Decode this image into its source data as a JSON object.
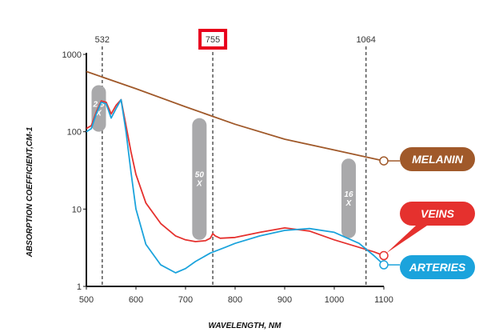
{
  "chart_data": {
    "type": "line",
    "title": "",
    "xlabel": "WAVELENGTH, NM",
    "ylabel": "ABSORPTION COEFFICIENT,CM-1",
    "xlim": [
      500,
      1100
    ],
    "ylim": [
      1,
      1000
    ],
    "yscale": "log",
    "xticks": [
      500,
      600,
      700,
      800,
      900,
      1000,
      1100
    ],
    "yticks": [
      1,
      10,
      100,
      1000
    ],
    "grid": false,
    "reference_lines": [
      {
        "x": 532,
        "label": "532",
        "highlighted": false
      },
      {
        "x": 755,
        "label": "755",
        "highlighted": true
      },
      {
        "x": 1064,
        "label": "1064",
        "highlighted": false
      }
    ],
    "series": [
      {
        "name": "MELANIN",
        "color": "#a0592a",
        "x": [
          500,
          600,
          700,
          800,
          900,
          1000,
          1100
        ],
        "y": [
          600,
          360,
          210,
          125,
          80,
          58,
          42
        ]
      },
      {
        "name": "VEINS",
        "color": "#e5312e",
        "x": [
          500,
          510,
          520,
          530,
          540,
          550,
          560,
          570,
          580,
          590,
          600,
          620,
          650,
          680,
          700,
          720,
          740,
          750,
          755,
          760,
          770,
          800,
          850,
          900,
          950,
          1000,
          1050,
          1080,
          1100
        ],
        "y": [
          110,
          120,
          180,
          250,
          240,
          170,
          220,
          260,
          120,
          55,
          28,
          12,
          6.5,
          4.5,
          4,
          3.8,
          3.9,
          4.2,
          4.8,
          4.5,
          4.2,
          4.3,
          5,
          5.7,
          5.2,
          4.0,
          3.2,
          2.8,
          2.5
        ]
      },
      {
        "name": "ARTERIES",
        "color": "#1ba3dc",
        "x": [
          500,
          510,
          520,
          530,
          540,
          550,
          560,
          570,
          580,
          590,
          600,
          620,
          650,
          680,
          700,
          720,
          750,
          780,
          800,
          850,
          900,
          950,
          1000,
          1050,
          1080,
          1100
        ],
        "y": [
          100,
          110,
          170,
          240,
          230,
          150,
          200,
          260,
          100,
          30,
          10,
          3.5,
          1.9,
          1.5,
          1.7,
          2.1,
          2.7,
          3.2,
          3.6,
          4.5,
          5.3,
          5.6,
          5.0,
          3.6,
          2.5,
          1.9
        ]
      }
    ],
    "annotations": [
      {
        "label_line1": "2.5",
        "label_line2": "X",
        "x": 525,
        "y_range": [
          100,
          400
        ]
      },
      {
        "label_line1": "50",
        "label_line2": "X",
        "x": 728,
        "y_range": [
          4,
          150
        ]
      },
      {
        "label_line1": "16",
        "label_line2": "X",
        "x": 1029,
        "y_range": [
          4.2,
          45
        ]
      }
    ],
    "legend_placement": "right, at line ends"
  }
}
